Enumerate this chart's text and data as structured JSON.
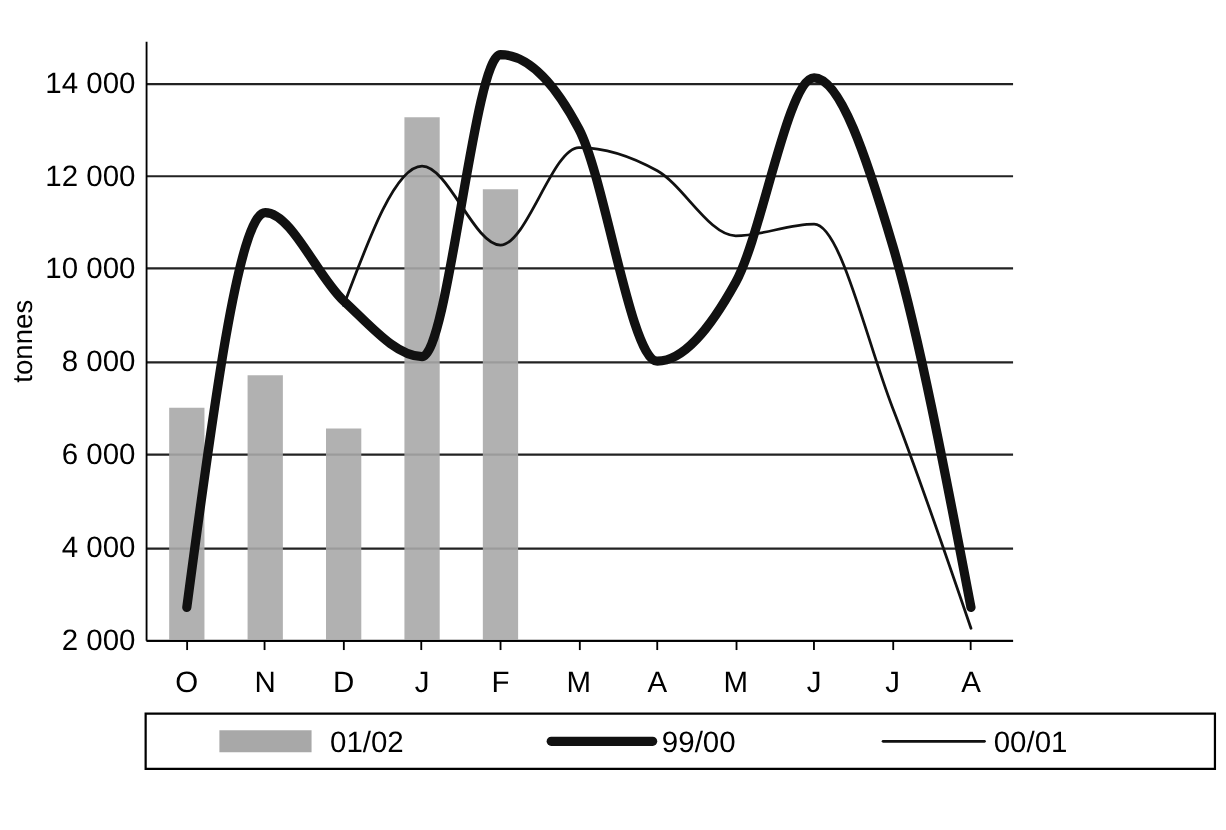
{
  "chart_data": {
    "type": "line",
    "ylabel": "tonnes",
    "categories": [
      "O",
      "N",
      "D",
      "J",
      "F",
      "M",
      "A",
      "M",
      "J",
      "J",
      "A"
    ],
    "series": [
      {
        "name": "01/02",
        "type": "bar",
        "color": "#a8a8a8",
        "values": [
          7000,
          7700,
          6550,
          13250,
          11700,
          null,
          null,
          null,
          null,
          null,
          null
        ]
      },
      {
        "name": "99/00",
        "color": "#111111",
        "values": [
          2700,
          11200,
          9300,
          8100,
          14600,
          13000,
          8000,
          9700,
          14100,
          10500,
          2700
        ]
      },
      {
        "name": "00/01",
        "color": "#111111",
        "values": [
          null,
          null,
          9200,
          12200,
          10500,
          12600,
          12100,
          10700,
          10950,
          7000,
          2250
        ]
      }
    ],
    "ylim": [
      2000,
      14900
    ],
    "yticks": [
      {
        "value": 2000,
        "label": "2 000"
      },
      {
        "value": 4000,
        "label": "4 000"
      },
      {
        "value": 6000,
        "label": "6 000"
      },
      {
        "value": 8000,
        "label": "8 000"
      },
      {
        "value": 10000,
        "label": "10 000"
      },
      {
        "value": 12000,
        "label": "12 000"
      },
      {
        "value": 14000,
        "label": "14 000"
      }
    ],
    "grid": "y",
    "legend": "bottom"
  }
}
